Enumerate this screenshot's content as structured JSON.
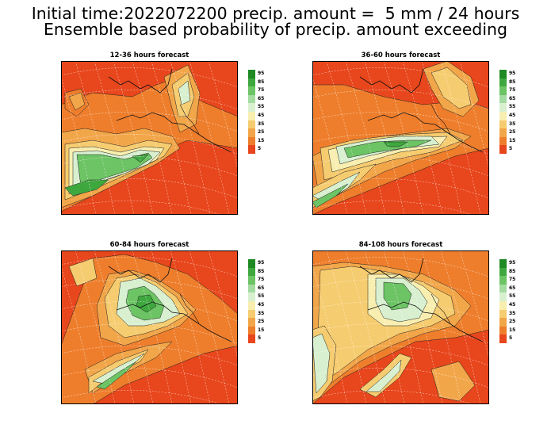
{
  "header": {
    "title_line1": "Initial time:2022072200 precip. amount =  5 mm / 24 hours",
    "title_line2": "Ensemble based probability of precip. amount exceeding"
  },
  "panels": [
    {
      "title": "12-36 hours forecast"
    },
    {
      "title": "36-60 hours forecast"
    },
    {
      "title": "60-84 hours forecast"
    },
    {
      "title": "84-108 hours forecast"
    }
  ],
  "colorbar": {
    "labels": [
      "95",
      "85",
      "75",
      "65",
      "55",
      "45",
      "35",
      "25",
      "15",
      "5"
    ],
    "colors": [
      "#1f8a24",
      "#3ea83e",
      "#6cc464",
      "#a3dba0",
      "#d8f0d0",
      "#f8eeb0",
      "#f6cc70",
      "#f2a64a",
      "#ee7e2c",
      "#e8461c"
    ]
  },
  "map_colors": {
    "background": "#e8461c",
    "band_light_orange": "#ee7e2c",
    "band_orange": "#f2a64a",
    "band_tan": "#f6cc70",
    "band_yellow": "#f8eeb0",
    "band_pale_green": "#d8f0d0",
    "band_light_green": "#a3dba0",
    "band_green": "#6cc464",
    "band_mid_green": "#3ea83e",
    "band_dark_green": "#1f8a24"
  }
}
